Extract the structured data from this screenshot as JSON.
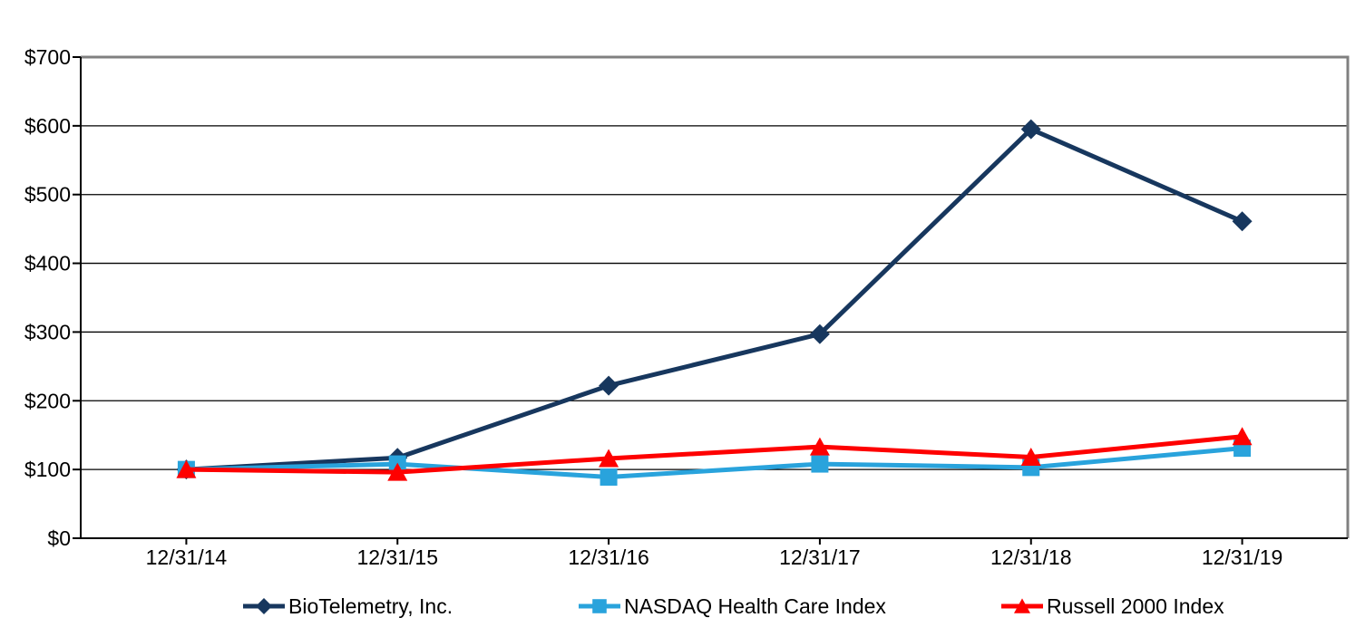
{
  "chart_data": {
    "type": "line",
    "title": "",
    "xlabel": "",
    "ylabel": "",
    "categories": [
      "12/31/14",
      "12/31/15",
      "12/31/16",
      "12/31/17",
      "12/31/18",
      "12/31/19"
    ],
    "series": [
      {
        "name": "BioTelemetry, Inc.",
        "color": "#17375E",
        "marker": "diamond",
        "values": [
          100,
          117,
          222,
          297,
          595,
          461
        ]
      },
      {
        "name": "NASDAQ Health Care Index",
        "color": "#29A3DC",
        "marker": "square",
        "values": [
          100,
          108,
          89,
          108,
          103,
          131
        ]
      },
      {
        "name": "Russell 2000 Index",
        "color": "#FE0000",
        "marker": "triangle",
        "values": [
          100,
          96,
          116,
          133,
          118,
          148
        ]
      }
    ],
    "y_axis": {
      "min": 0,
      "max": 700,
      "step": 100,
      "tick_labels": [
        "$0",
        "$100",
        "$200",
        "$300",
        "$400",
        "$500",
        "$600",
        "$700"
      ]
    },
    "grid": true,
    "legend_position": "bottom",
    "axis_color": "#000000",
    "gridline_color": "#000000",
    "border_color": "#808080",
    "background_color": "#FFFFFF"
  }
}
